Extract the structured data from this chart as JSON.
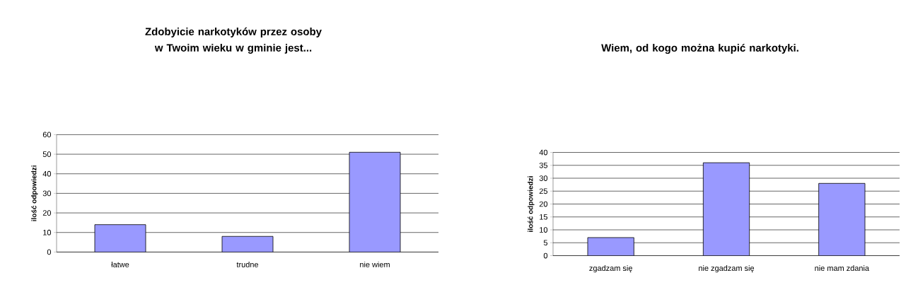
{
  "chart_data": [
    {
      "type": "bar",
      "title": "Zdobyicie narkotyków przez osoby w Twoim wieku w gminie jest...",
      "ylabel": "ilość odpowiedzi",
      "categories": [
        "łatwe",
        "trudne",
        "nie wiem"
      ],
      "values": [
        14,
        8,
        51
      ],
      "color": "#9999ff",
      "ylim": [
        0,
        60
      ],
      "yticks": [
        0,
        10,
        20,
        30,
        40,
        50,
        60
      ],
      "grid": "y"
    },
    {
      "type": "bar",
      "title": "Wiem, od kogo można kupić narkotyki.",
      "ylabel": "ilość odpowiedzi",
      "categories": [
        "zgadzam się",
        "nie zgadzam się",
        "nie mam zdania"
      ],
      "values": [
        7,
        36,
        28
      ],
      "color": "#9999ff",
      "ylim": [
        0,
        40
      ],
      "yticks": [
        0,
        5,
        10,
        15,
        20,
        25,
        30,
        35,
        40
      ],
      "grid": "y"
    }
  ]
}
